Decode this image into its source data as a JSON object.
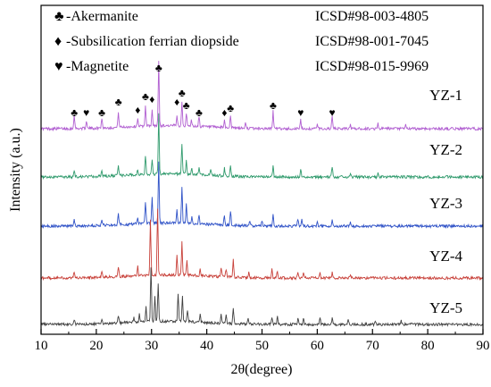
{
  "chart_data": {
    "type": "line",
    "title": "",
    "xlabel": "2θ(degree)",
    "ylabel": "Intensity (a.u.)",
    "xlim": [
      10,
      90
    ],
    "xticks": [
      10,
      20,
      30,
      40,
      50,
      60,
      70,
      80,
      90
    ],
    "y_ticks_shown": false,
    "grid": false,
    "legend": {
      "placement": "top",
      "entries": [
        {
          "symbol": "♣",
          "label": "-Akermanite",
          "reference": "ICSD#98-003-4805"
        },
        {
          "symbol": "♦",
          "label": "-Subsilication ferrian diopside",
          "reference": "ICSD#98-001-7045"
        },
        {
          "symbol": "♥",
          "label": "-Magnetite",
          "reference": "ICSD#98-015-9969"
        }
      ]
    },
    "peak_markers": [
      {
        "x": 16.0,
        "symbol": "♣"
      },
      {
        "x": 18.2,
        "symbol": "♥"
      },
      {
        "x": 21.0,
        "symbol": "♣"
      },
      {
        "x": 24.0,
        "symbol": "♣"
      },
      {
        "x": 27.5,
        "symbol": "♦"
      },
      {
        "x": 28.9,
        "symbol": "♣"
      },
      {
        "x": 30.1,
        "symbol": "♦"
      },
      {
        "x": 31.3,
        "symbol": "♣"
      },
      {
        "x": 34.6,
        "symbol": "♦"
      },
      {
        "x": 35.5,
        "symbol": "♣"
      },
      {
        "x": 36.3,
        "symbol": "♣"
      },
      {
        "x": 38.6,
        "symbol": "♣"
      },
      {
        "x": 43.2,
        "symbol": "♦"
      },
      {
        "x": 44.3,
        "symbol": "♣"
      },
      {
        "x": 52.0,
        "symbol": "♣"
      },
      {
        "x": 57.0,
        "symbol": "♥"
      },
      {
        "x": 62.7,
        "symbol": "♥"
      }
    ],
    "series": [
      {
        "name": "YZ-1",
        "color": "#b15fd1",
        "peaks": [
          [
            16.0,
            1.1
          ],
          [
            18.2,
            0.6
          ],
          [
            21.0,
            0.8
          ],
          [
            24.0,
            1.3
          ],
          [
            27.5,
            0.7
          ],
          [
            28.9,
            1.6
          ],
          [
            30.1,
            1.2
          ],
          [
            31.3,
            5.2
          ],
          [
            34.6,
            0.7
          ],
          [
            35.5,
            2.0
          ],
          [
            36.3,
            1.0
          ],
          [
            37.2,
            0.5
          ],
          [
            38.6,
            0.8
          ],
          [
            43.2,
            0.6
          ],
          [
            44.3,
            1.0
          ],
          [
            47.0,
            0.4
          ],
          [
            52.0,
            1.4
          ],
          [
            57.0,
            0.7
          ],
          [
            60.0,
            0.4
          ],
          [
            62.7,
            1.0
          ],
          [
            66.0,
            0.4
          ],
          [
            71.0,
            0.4
          ],
          [
            76.0,
            0.3
          ]
        ]
      },
      {
        "name": "YZ-2",
        "color": "#2f9a6c",
        "peaks": [
          [
            16.0,
            0.5
          ],
          [
            21.0,
            0.4
          ],
          [
            24.0,
            0.9
          ],
          [
            27.5,
            0.4
          ],
          [
            28.9,
            1.4
          ],
          [
            30.1,
            1.1
          ],
          [
            31.3,
            4.9
          ],
          [
            35.5,
            2.5
          ],
          [
            36.3,
            1.1
          ],
          [
            37.3,
            0.5
          ],
          [
            38.6,
            0.5
          ],
          [
            40.7,
            0.4
          ],
          [
            43.2,
            0.6
          ],
          [
            44.3,
            0.9
          ],
          [
            52.0,
            0.9
          ],
          [
            57.0,
            0.7
          ],
          [
            62.7,
            0.8
          ],
          [
            66.0,
            0.3
          ],
          [
            71.0,
            0.3
          ]
        ]
      },
      {
        "name": "YZ-3",
        "color": "#2f52c7",
        "peaks": [
          [
            16.0,
            0.6
          ],
          [
            21.0,
            0.5
          ],
          [
            24.0,
            1.0
          ],
          [
            27.5,
            0.5
          ],
          [
            28.9,
            1.6
          ],
          [
            30.1,
            2.1
          ],
          [
            31.3,
            5.0
          ],
          [
            34.6,
            1.0
          ],
          [
            35.5,
            3.0
          ],
          [
            36.3,
            1.5
          ],
          [
            37.3,
            0.6
          ],
          [
            38.6,
            0.7
          ],
          [
            43.2,
            0.8
          ],
          [
            44.3,
            1.2
          ],
          [
            47.8,
            0.4
          ],
          [
            50.0,
            0.4
          ],
          [
            52.0,
            1.0
          ],
          [
            56.5,
            0.6
          ],
          [
            57.2,
            0.6
          ],
          [
            60.0,
            0.4
          ],
          [
            62.7,
            0.6
          ],
          [
            66.0,
            0.4
          ]
        ]
      },
      {
        "name": "YZ-4",
        "color": "#c8413a",
        "peaks": [
          [
            16.0,
            0.5
          ],
          [
            21.0,
            0.4
          ],
          [
            24.0,
            0.8
          ],
          [
            27.5,
            0.8
          ],
          [
            29.8,
            4.4
          ],
          [
            31.1,
            5.3
          ],
          [
            34.6,
            1.5
          ],
          [
            35.5,
            2.6
          ],
          [
            36.4,
            1.2
          ],
          [
            38.8,
            0.6
          ],
          [
            42.6,
            0.7
          ],
          [
            43.5,
            0.6
          ],
          [
            44.8,
            1.4
          ],
          [
            47.6,
            0.4
          ],
          [
            51.8,
            0.7
          ],
          [
            52.8,
            0.6
          ],
          [
            56.5,
            0.5
          ],
          [
            57.5,
            0.5
          ],
          [
            60.5,
            0.4
          ],
          [
            62.7,
            0.4
          ],
          [
            66.0,
            0.3
          ]
        ]
      },
      {
        "name": "YZ-5",
        "color": "#404040",
        "peaks": [
          [
            16.0,
            0.4
          ],
          [
            21.0,
            0.4
          ],
          [
            24.0,
            0.6
          ],
          [
            26.8,
            0.4
          ],
          [
            27.8,
            0.7
          ],
          [
            29.0,
            1.2
          ],
          [
            29.9,
            4.4
          ],
          [
            30.6,
            2.0
          ],
          [
            31.2,
            3.1
          ],
          [
            34.8,
            2.3
          ],
          [
            35.6,
            2.1
          ],
          [
            36.5,
            1.0
          ],
          [
            38.8,
            0.6
          ],
          [
            42.6,
            0.8
          ],
          [
            43.5,
            0.7
          ],
          [
            44.8,
            1.3
          ],
          [
            47.5,
            0.5
          ],
          [
            51.8,
            0.6
          ],
          [
            52.8,
            0.6
          ],
          [
            56.5,
            0.5
          ],
          [
            57.5,
            0.5
          ],
          [
            60.5,
            0.5
          ],
          [
            62.7,
            0.5
          ],
          [
            65.6,
            0.4
          ],
          [
            70.5,
            0.3
          ],
          [
            75.2,
            0.3
          ]
        ]
      }
    ]
  }
}
